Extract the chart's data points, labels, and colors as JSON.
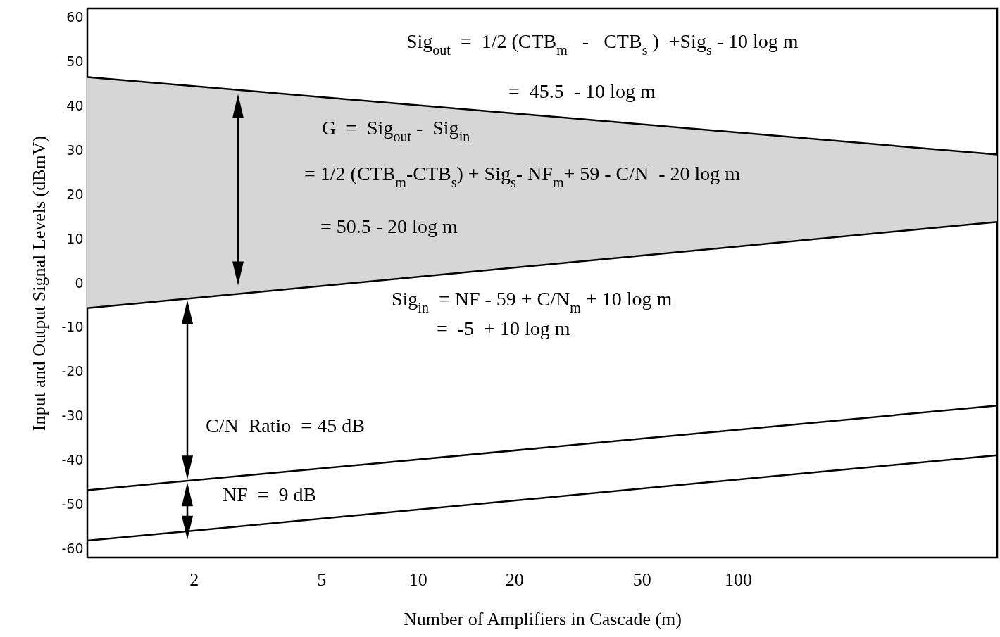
{
  "chart_data": {
    "type": "line",
    "xlabel": "Number of Amplifiers in Cascade  (m)",
    "ylabel": "Input and Output Signal Levels  (dBmV)",
    "x": [
      0.93,
      644
    ],
    "log": "x",
    "xlim": [
      0.93,
      644
    ],
    "xticks": [
      2,
      5,
      10,
      20,
      50,
      100
    ],
    "ylim": [
      -62,
      62
    ],
    "yticks": [
      -60,
      -50,
      -40,
      -30,
      -20,
      -10,
      0,
      10,
      20,
      30,
      40,
      50,
      60
    ],
    "grid": false,
    "marker": "none",
    "line_style": "solid",
    "series": [
      {
        "color": "#000000",
        "values": [
          46.5,
          29
        ],
        "lower": [
          -5.7,
          13.8
        ],
        "upper": [
          46.5,
          29
        ]
      },
      {
        "color": "#000000",
        "values": [
          -5.7,
          13.8
        ]
      },
      {
        "color": "#000000",
        "values": [
          -46.8,
          -27.7
        ]
      },
      {
        "color": "#000000",
        "values": [
          -58.2,
          -38.9
        ]
      }
    ],
    "annotations": [
      "Sig$_{out}$  =  1/2 (CTB$_{m}$   -   CTB$_{s}$ )  +Sig$_{s}$ - 10 log m",
      "=  45.5  - 10 log m",
      "G  =  Sig$_{out}$ -  Sig$_{in}$",
      "= 1/2 (CTB$_{m}$-CTB$_{s}$) + Sig$_{s}$- NF$_{m}$+ 59 - C/N  - 20 log m",
      "= 50.5 - 20 log m",
      "Sig$_{in}$  = NF - 59 + C/N$_{m}$ + 10 log m",
      "=  -5  + 10 log m",
      "C/N  Ratio  = 45 dB",
      "NF  =  9 dB"
    ]
  }
}
